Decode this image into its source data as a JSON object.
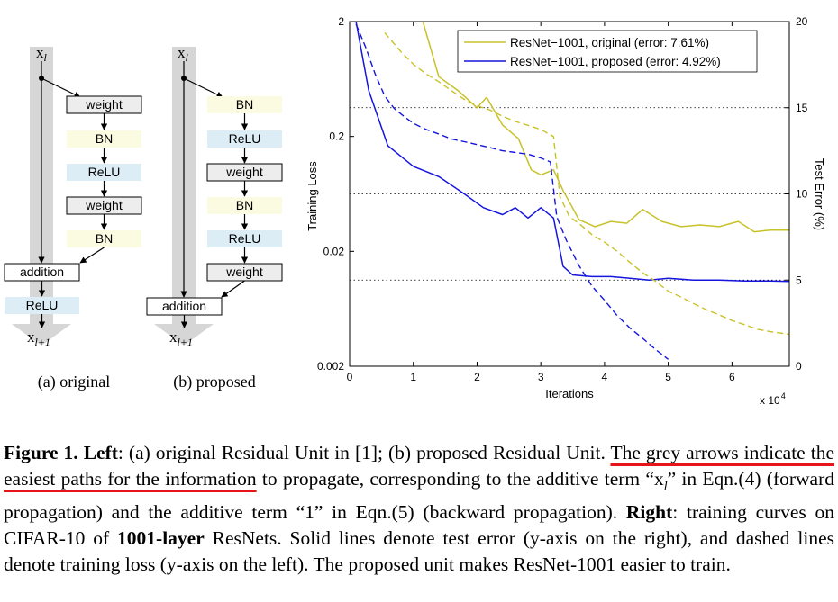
{
  "left": {
    "diagram_a": {
      "input": "x",
      "input_sub": "l",
      "blocks": [
        "weight",
        "BN",
        "ReLU",
        "weight",
        "BN"
      ],
      "addition": "addition",
      "after": "ReLU",
      "output": "x",
      "output_sub": "l+1",
      "caption": "(a) original"
    },
    "diagram_b": {
      "input": "x",
      "input_sub": "l",
      "blocks": [
        "BN",
        "ReLU",
        "weight",
        "BN",
        "ReLU",
        "weight"
      ],
      "addition": "addition",
      "output": "x",
      "output_sub": "l+1",
      "caption": "(b) proposed"
    }
  },
  "colors": {
    "original": "#c8c22a",
    "proposed": "#1515e0",
    "weight_fill": "#ededed",
    "bn_fill": "#fbfbe2",
    "relu_fill": "#dcedf5",
    "grey_arrow": "#d6d6d6",
    "underline": "#e8141b"
  },
  "chart_data": {
    "type": "line",
    "xlabel": "Iterations",
    "x_multiplier": "x 10",
    "x_multiplier_exp": "4",
    "ylabel_left": "Training Loss",
    "ylabel_right": "Test Error (%)",
    "xlim": [
      0,
      6.9
    ],
    "xticks": [
      "0",
      "1",
      "2",
      "3",
      "4",
      "5",
      "6"
    ],
    "ylim_left": [
      0.002,
      2
    ],
    "yscale_left": "log",
    "yticks_left": [
      "0.002",
      "0.02",
      "0.2",
      "2"
    ],
    "ylim_right": [
      0,
      20
    ],
    "yticks_right": [
      "0",
      "5",
      "10",
      "15",
      "20"
    ],
    "grid": "horizontal dotted at right-axis 5, 10, 15",
    "legend_position": "top-right",
    "legend": [
      "ResNet−1001, original (error: 7.61%)",
      "ResNet−1001, proposed (error: 4.92%)"
    ],
    "series": [
      {
        "name": "ResNet−1001, original (error: 7.61%)",
        "style": "solid",
        "axis": "right",
        "x": [
          1.15,
          1.4,
          1.7,
          2.0,
          2.15,
          2.4,
          2.65,
          2.85,
          3.0,
          3.2,
          3.35,
          3.6,
          3.85,
          4.1,
          4.35,
          4.6,
          4.9,
          5.2,
          5.5,
          5.8,
          6.1,
          6.35,
          6.6,
          6.9
        ],
        "y": [
          20.0,
          16.8,
          16.0,
          15.0,
          15.6,
          14.0,
          13.2,
          11.4,
          11.1,
          11.4,
          10.2,
          8.5,
          8.1,
          8.4,
          8.3,
          9.1,
          8.4,
          8.1,
          8.2,
          8.1,
          8.4,
          7.8,
          7.9,
          7.9
        ]
      },
      {
        "name": "ResNet−1001, proposed (error: 4.92%)",
        "style": "solid",
        "axis": "right",
        "x": [
          0.1,
          0.3,
          0.6,
          1.0,
          1.4,
          1.8,
          2.1,
          2.4,
          2.6,
          2.8,
          3.0,
          3.2,
          3.35,
          3.5,
          3.8,
          4.1,
          4.4,
          4.7,
          5.0,
          5.4,
          5.8,
          6.2,
          6.6,
          6.9
        ],
        "y": [
          20.0,
          16.0,
          12.8,
          11.6,
          11.0,
          10.0,
          9.2,
          8.8,
          9.2,
          8.6,
          9.2,
          8.6,
          5.8,
          5.3,
          5.2,
          5.2,
          5.1,
          5.0,
          5.1,
          5.0,
          5.0,
          4.95,
          4.95,
          4.92
        ]
      },
      {
        "name": "ResNet−1001, original (error: 7.61%)",
        "style": "dashed",
        "axis": "left",
        "x": [
          0.55,
          0.8,
          1.0,
          1.2,
          1.4,
          1.6,
          1.8,
          2.0,
          2.2,
          2.4,
          2.6,
          2.8,
          3.0,
          3.2,
          3.3,
          3.45,
          3.6,
          3.8,
          4.0,
          4.2,
          4.4,
          4.6,
          4.8,
          5.0,
          5.2,
          5.4,
          5.6,
          5.8,
          6.0,
          6.2,
          6.4,
          6.6,
          6.9
        ],
        "y": [
          1.6,
          1.1,
          0.85,
          0.7,
          0.6,
          0.5,
          0.42,
          0.37,
          0.34,
          0.3,
          0.27,
          0.25,
          0.23,
          0.2,
          0.06,
          0.04,
          0.035,
          0.028,
          0.024,
          0.02,
          0.016,
          0.013,
          0.011,
          0.009,
          0.008,
          0.007,
          0.0062,
          0.0056,
          0.005,
          0.0046,
          0.0042,
          0.004,
          0.0038
        ]
      },
      {
        "name": "ResNet−1001, proposed (error: 4.92%)",
        "style": "dashed",
        "axis": "left",
        "x": [
          0.1,
          0.25,
          0.4,
          0.55,
          0.7,
          0.85,
          1.0,
          1.2,
          1.4,
          1.6,
          1.8,
          2.0,
          2.2,
          2.4,
          2.6,
          2.8,
          3.0,
          3.15,
          3.25,
          3.4,
          3.6,
          3.8,
          4.0,
          4.2,
          4.4,
          4.6,
          4.8,
          5.0
        ],
        "y": [
          1.9,
          1.2,
          0.7,
          0.45,
          0.35,
          0.3,
          0.26,
          0.23,
          0.21,
          0.19,
          0.18,
          0.17,
          0.16,
          0.15,
          0.145,
          0.14,
          0.13,
          0.12,
          0.04,
          0.025,
          0.015,
          0.01,
          0.0075,
          0.0055,
          0.0043,
          0.0035,
          0.0028,
          0.0023
        ]
      }
    ]
  },
  "caption": {
    "fig_label": "Figure 1.",
    "left_label": "Left",
    "seg1": ": (a) original Residual Unit in [1]; (b) proposed Residual Unit. ",
    "underlined": "The grey arrows indicate the easiest paths for the information",
    "seg2": " to propagate, corresponding to the additive term “x",
    "seg2_sub": "l",
    "seg3": "” in Eqn.(4) (forward propagation) and the additive term “1” in Eqn.(5) (backward propagation). ",
    "right_label": "Right",
    "seg4": ": training curves on CIFAR-10 of ",
    "bold_layer": "1001-layer",
    "seg5": " ResNets. Solid lines denote test error (y-axis on the right), and dashed lines denote training loss (y-axis on the left). The proposed unit makes ResNet-1001 easier to train."
  }
}
